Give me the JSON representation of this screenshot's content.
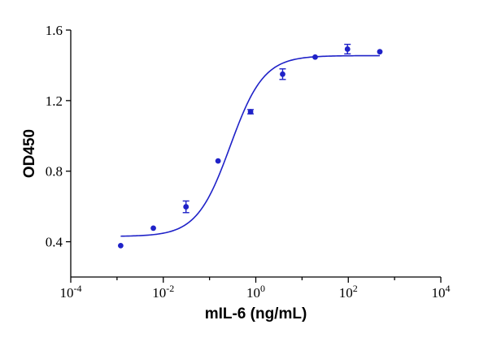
{
  "chart_data": {
    "type": "scatter",
    "title": "",
    "xlabel": "mIL-6 (ng/mL)",
    "ylabel": "OD450",
    "x_scale": "log",
    "xlim": [
      0.0001,
      10000
    ],
    "ylim": [
      0.2,
      1.6
    ],
    "x_ticks": [
      {
        "value": 0.0001,
        "base": "10",
        "exp": "-4"
      },
      {
        "value": 0.01,
        "base": "10",
        "exp": "-2"
      },
      {
        "value": 1,
        "base": "10",
        "exp": "0"
      },
      {
        "value": 100,
        "base": "10",
        "exp": "2"
      },
      {
        "value": 10000,
        "base": "10",
        "exp": "4"
      }
    ],
    "y_ticks": [
      {
        "value": 0.4,
        "label": "0.4"
      },
      {
        "value": 0.8,
        "label": "0.8"
      },
      {
        "value": 1.2,
        "label": "1.2"
      },
      {
        "value": 1.6,
        "label": "1.6"
      }
    ],
    "grid": false,
    "color": "#1f22c8",
    "points": [
      {
        "x": 0.0012,
        "y": 0.378,
        "err": 0
      },
      {
        "x": 0.0061,
        "y": 0.477,
        "err": 0
      },
      {
        "x": 0.031,
        "y": 0.598,
        "err": 0.033
      },
      {
        "x": 0.153,
        "y": 0.858,
        "err": 0
      },
      {
        "x": 0.77,
        "y": 1.137,
        "err": 0.012
      },
      {
        "x": 3.8,
        "y": 1.35,
        "err": 0.03
      },
      {
        "x": 19.2,
        "y": 1.447,
        "err": 0
      },
      {
        "x": 96,
        "y": 1.492,
        "err": 0.027
      },
      {
        "x": 480,
        "y": 1.477,
        "err": 0
      }
    ],
    "fit": {
      "model": "4PL",
      "bottom": 0.43,
      "top": 1.455,
      "ec50": 0.28,
      "hill": 1.2,
      "x_range": [
        0.0012,
        480
      ]
    }
  }
}
